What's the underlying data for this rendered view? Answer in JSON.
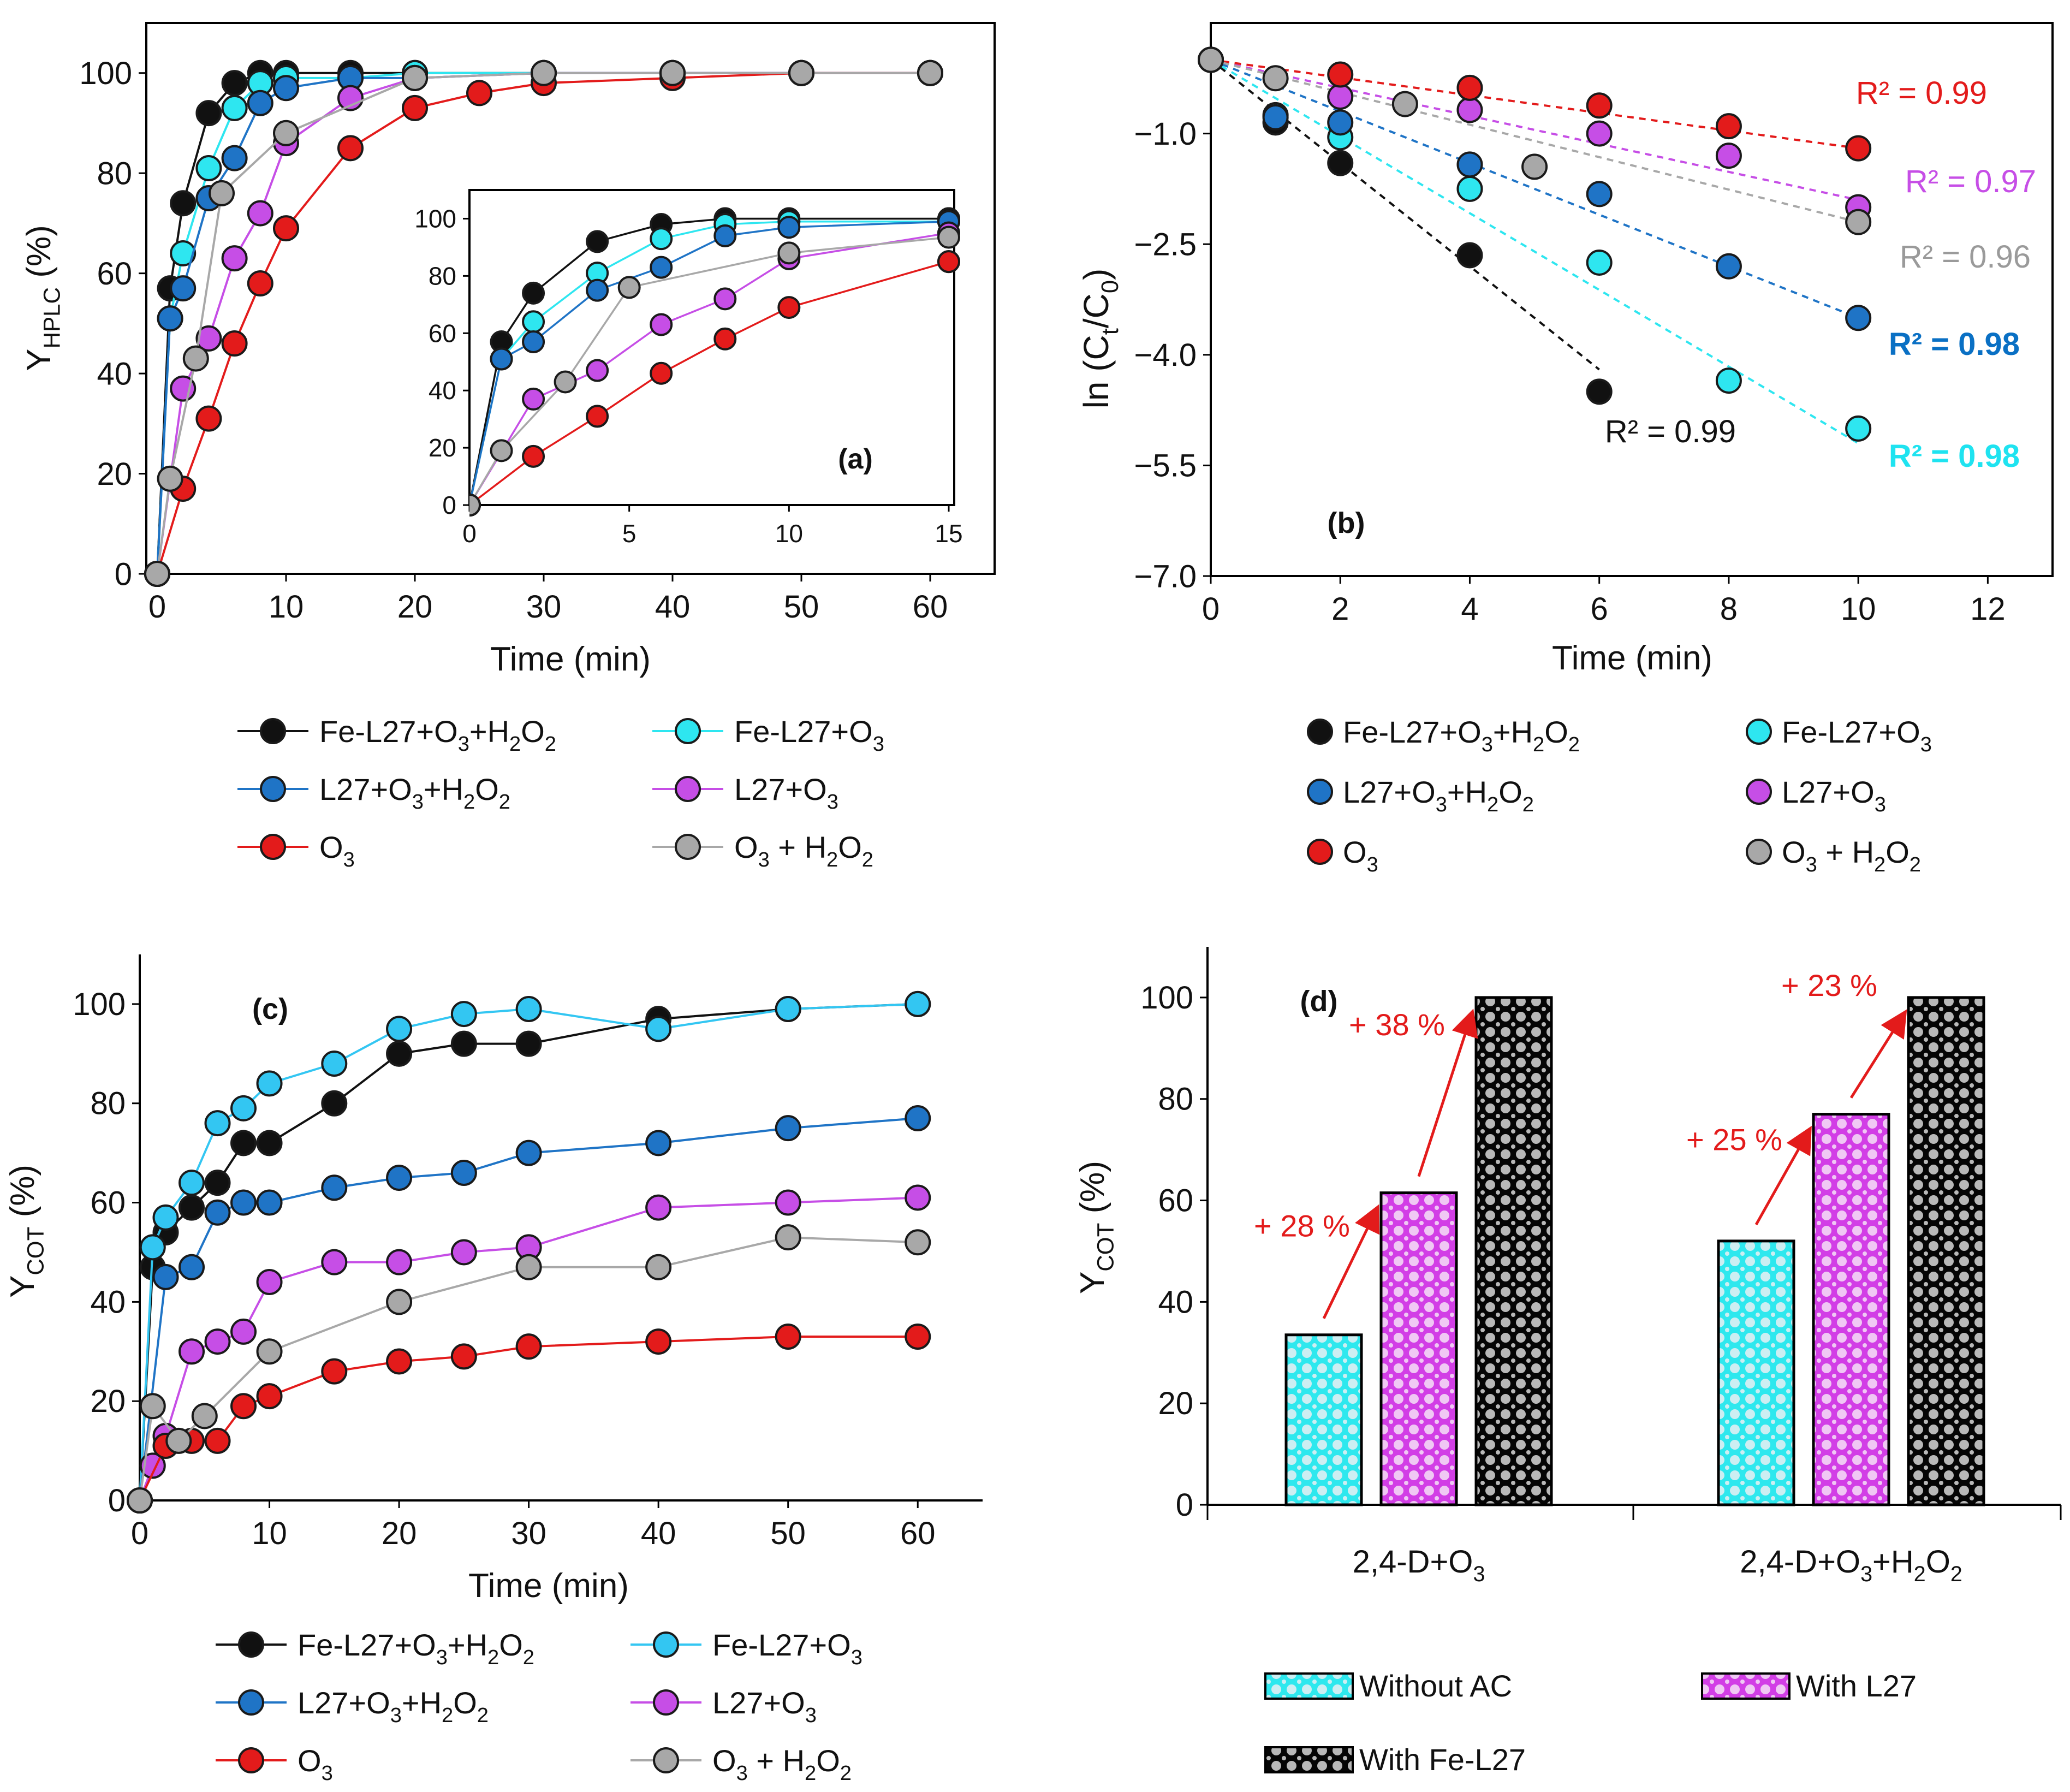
{
  "chart_data": [
    {
      "id": "a",
      "type": "line",
      "panel_label": "(a)",
      "xlabel": "Time (min)",
      "ylabel_main": "Y",
      "ylabel_sub": "HPLC",
      "ylabel_tail": " (%)",
      "xlim": [
        0,
        65
      ],
      "ylim": [
        0,
        110
      ],
      "xticks": [
        0,
        10,
        20,
        30,
        40,
        50,
        60
      ],
      "yticks": [
        0,
        20,
        40,
        60,
        80,
        100
      ],
      "series": [
        {
          "key": "fe_o3_h2o2",
          "x": [
            0,
            1,
            2,
            4,
            6,
            8,
            10,
            15,
            20,
            30,
            40,
            50,
            60
          ],
          "y": [
            0,
            57,
            74,
            92,
            98,
            100,
            100,
            100,
            100,
            100,
            100,
            100,
            100
          ]
        },
        {
          "key": "fe_o3",
          "x": [
            0,
            1,
            2,
            4,
            6,
            8,
            10,
            15,
            20,
            30,
            40,
            50,
            60
          ],
          "y": [
            0,
            51,
            64,
            81,
            93,
            98,
            99,
            99,
            100,
            100,
            100,
            100,
            100
          ]
        },
        {
          "key": "l27_o3_h2o2",
          "x": [
            0,
            1,
            2,
            4,
            6,
            8,
            10,
            15,
            20,
            30,
            40,
            50,
            60
          ],
          "y": [
            0,
            51,
            57,
            75,
            83,
            94,
            97,
            99,
            99,
            100,
            100,
            100,
            100
          ]
        },
        {
          "key": "l27_o3",
          "x": [
            0,
            2,
            4,
            6,
            8,
            10,
            15,
            20,
            30,
            40,
            50,
            60
          ],
          "y": [
            0,
            37,
            47,
            63,
            72,
            86,
            95,
            99,
            100,
            100,
            100,
            100
          ]
        },
        {
          "key": "o3",
          "x": [
            0,
            2,
            4,
            6,
            8,
            10,
            15,
            20,
            25,
            30,
            40,
            50,
            60
          ],
          "y": [
            0,
            17,
            31,
            46,
            58,
            69,
            85,
            93,
            96,
            98,
            99,
            100,
            100
          ]
        },
        {
          "key": "o3_h2o2",
          "x": [
            0,
            1,
            3,
            5,
            10,
            20,
            30,
            40,
            50,
            60
          ],
          "y": [
            0,
            19,
            43,
            76,
            88,
            99,
            100,
            100,
            100,
            100
          ]
        }
      ],
      "inset": {
        "xlim": [
          0,
          15
        ],
        "ylim": [
          0,
          110
        ],
        "xticks": [
          0,
          5,
          10,
          15
        ],
        "yticks": [
          0,
          20,
          40,
          60,
          80,
          100
        ]
      }
    },
    {
      "id": "b",
      "type": "scatter",
      "panel_label": "(b)",
      "xlabel": "Time (min)",
      "ylabel_pre": "ln (C",
      "ylabel_sub1": "t",
      "ylabel_mid": "/C",
      "ylabel_sub2": "0",
      "ylabel_post": ")",
      "xlim": [
        0,
        13
      ],
      "ylim": [
        -7.0,
        0.5
      ],
      "xticks": [
        0,
        2,
        4,
        6,
        8,
        10,
        12
      ],
      "yticks": [
        -7.0,
        -5.5,
        -4.0,
        -2.5,
        -1.0
      ],
      "ytick_labels": [
        "−7.0",
        "−5.5",
        "−4.0",
        "−2.5",
        "−1.0"
      ],
      "series": [
        {
          "key": "fe_o3_h2o2",
          "x": [
            0,
            1,
            2,
            4,
            6
          ],
          "y": [
            0.0,
            -0.85,
            -1.4,
            -2.65,
            -4.5
          ],
          "fit": [
            0,
            -0.7
          ],
          "r2": "R² = 0.99"
        },
        {
          "key": "fe_o3",
          "x": [
            0,
            1,
            2,
            4,
            6,
            8,
            10
          ],
          "y": [
            0.0,
            -0.75,
            -1.05,
            -1.75,
            -2.75,
            -4.35,
            -5.0
          ],
          "fit": [
            0,
            -0.52
          ],
          "r2": "R² = 0.98"
        },
        {
          "key": "l27_o3_h2o2",
          "x": [
            0,
            1,
            2,
            4,
            6,
            8,
            10
          ],
          "y": [
            0.0,
            -0.78,
            -0.85,
            -1.42,
            -1.82,
            -2.8,
            -3.5
          ],
          "fit": [
            0,
            -0.35
          ],
          "r2": "R² = 0.98"
        },
        {
          "key": "l27_o3",
          "x": [
            0,
            2,
            4,
            6,
            8,
            10
          ],
          "y": [
            0.0,
            -0.5,
            -0.68,
            -1.0,
            -1.3,
            -2.0
          ],
          "fit": [
            0,
            -0.19
          ],
          "r2": "R² = 0.97"
        },
        {
          "key": "o3",
          "x": [
            0,
            2,
            4,
            6,
            8,
            10
          ],
          "y": [
            0.0,
            -0.2,
            -0.38,
            -0.62,
            -0.9,
            -1.2
          ],
          "fit": [
            0,
            -0.12
          ],
          "r2": "R² = 0.99"
        },
        {
          "key": "o3_h2o2",
          "x": [
            0,
            1,
            3,
            5,
            10
          ],
          "y": [
            0.0,
            -0.25,
            -0.6,
            -1.45,
            -2.2
          ],
          "fit": [
            0,
            -0.22
          ],
          "r2": "R² = 0.96"
        }
      ]
    },
    {
      "id": "c",
      "type": "line",
      "panel_label": "(c)",
      "xlabel": "Time (min)",
      "ylabel_main": "Y",
      "ylabel_sub": "COT",
      "ylabel_tail": " (%)",
      "xlim": [
        0,
        65
      ],
      "ylim": [
        0,
        110
      ],
      "xticks": [
        0,
        10,
        20,
        30,
        40,
        50,
        60
      ],
      "yticks": [
        0,
        20,
        40,
        60,
        80,
        100
      ],
      "series": [
        {
          "key": "fe_o3_h2o2",
          "x": [
            0,
            1,
            2,
            4,
            6,
            8,
            10,
            15,
            20,
            25,
            30,
            40,
            50,
            60
          ],
          "y": [
            0,
            47,
            54,
            59,
            64,
            72,
            72,
            80,
            90,
            92,
            92,
            97,
            99,
            100
          ]
        },
        {
          "key": "fe_o3",
          "x": [
            0,
            1,
            2,
            4,
            6,
            8,
            10,
            15,
            20,
            25,
            30,
            40,
            50,
            60
          ],
          "y": [
            0,
            51,
            57,
            64,
            76,
            79,
            84,
            88,
            95,
            98,
            99,
            95,
            99,
            100
          ]
        },
        {
          "key": "l27_o3_h2o2",
          "x": [
            0,
            2,
            4,
            6,
            8,
            10,
            15,
            20,
            25,
            30,
            40,
            50,
            60
          ],
          "y": [
            0,
            45,
            47,
            58,
            60,
            60,
            63,
            65,
            66,
            70,
            72,
            75,
            77
          ]
        },
        {
          "key": "l27_o3",
          "x": [
            0,
            1,
            2,
            4,
            6,
            8,
            10,
            15,
            20,
            25,
            30,
            40,
            50,
            60
          ],
          "y": [
            0,
            7,
            13,
            30,
            32,
            34,
            44,
            48,
            48,
            50,
            51,
            59,
            60,
            61
          ]
        },
        {
          "key": "o3",
          "x": [
            0,
            2,
            4,
            6,
            8,
            10,
            15,
            20,
            25,
            30,
            40,
            50,
            60
          ],
          "y": [
            0,
            11,
            12,
            12,
            19,
            21,
            26,
            28,
            29,
            31,
            32,
            33,
            33
          ]
        },
        {
          "key": "o3_h2o2",
          "x": [
            0,
            1,
            3,
            5,
            10,
            20,
            30,
            40,
            50,
            60
          ],
          "y": [
            0,
            19,
            12,
            17,
            30,
            40,
            47,
            47,
            53,
            52
          ]
        }
      ]
    },
    {
      "id": "d",
      "type": "bar",
      "panel_label": "(d)",
      "ylabel_main": "Y",
      "ylabel_sub": "COT",
      "ylabel_tail": " (%)",
      "ylim": [
        0,
        110
      ],
      "yticks": [
        0,
        20,
        40,
        60,
        80,
        100
      ],
      "categories": [
        {
          "pre": "2,4-D+O",
          "s1": "3",
          "mid": "",
          "s2": "",
          "post": ""
        },
        {
          "pre": "2,4-D+O",
          "s1": "3",
          "mid": "+H",
          "s2": "2",
          "post": "O₂"
        }
      ],
      "series": [
        {
          "name": "Without AC",
          "values": [
            33.5,
            52
          ]
        },
        {
          "name": "With L27",
          "values": [
            61.5,
            77
          ]
        },
        {
          "name": "With Fe-L27",
          "values": [
            100,
            100
          ]
        }
      ],
      "annotations": [
        {
          "text": "+ 28 %",
          "group": 0,
          "step": 0
        },
        {
          "text": "+ 38 %",
          "group": 0,
          "step": 1
        },
        {
          "text": "+ 25 %",
          "group": 1,
          "step": 0
        },
        {
          "text": "+ 23 %",
          "group": 1,
          "step": 1
        }
      ]
    }
  ],
  "legend_entries": [
    {
      "key": "fe_o3_h2o2",
      "parts": [
        [
          "Fe-L27+O",
          ""
        ],
        [
          "3",
          "sub"
        ],
        [
          "+H",
          ""
        ],
        [
          "2",
          "sub"
        ],
        [
          "O",
          ""
        ],
        [
          "2",
          "sub"
        ]
      ]
    },
    {
      "key": "fe_o3",
      "parts": [
        [
          "Fe-L27+O",
          ""
        ],
        [
          "3",
          "sub"
        ]
      ]
    },
    {
      "key": "l27_o3_h2o2",
      "parts": [
        [
          "L27+O",
          ""
        ],
        [
          "3",
          "sub"
        ],
        [
          "+H",
          ""
        ],
        [
          "2",
          "sub"
        ],
        [
          "O",
          ""
        ],
        [
          "2",
          "sub"
        ]
      ]
    },
    {
      "key": "l27_o3",
      "parts": [
        [
          "L27+O",
          ""
        ],
        [
          "3",
          "sub"
        ]
      ]
    },
    {
      "key": "o3",
      "parts": [
        [
          "O",
          ""
        ],
        [
          "3",
          "sub"
        ]
      ]
    },
    {
      "key": "o3_h2o2",
      "parts": [
        [
          "O",
          ""
        ],
        [
          "3",
          "sub"
        ],
        [
          " + H",
          ""
        ],
        [
          "2",
          "sub"
        ],
        [
          "O",
          ""
        ],
        [
          "2",
          "sub"
        ]
      ]
    }
  ],
  "colors": {
    "fe_o3_h2o2": "#111111",
    "fe_o3": "#2ee6f0",
    "fe_o3_c": "#33c6f2",
    "l27_o3_h2o2": "#1f74c6",
    "l27_o3": "#c64ee6",
    "o3": "#e31b1b",
    "o3_h2o2": "#a8a8a8",
    "arrow": "#e31b1b",
    "text": "#111111"
  },
  "r2_colors": {
    "fe_o3_h2o2": "#111111",
    "fe_o3": "#1fe3f0",
    "l27_o3_h2o2": "#0a70c4",
    "l27_o3": "#c64ee6",
    "o3": "#e31b1b",
    "o3_h2o2": "#9a9a9a"
  }
}
